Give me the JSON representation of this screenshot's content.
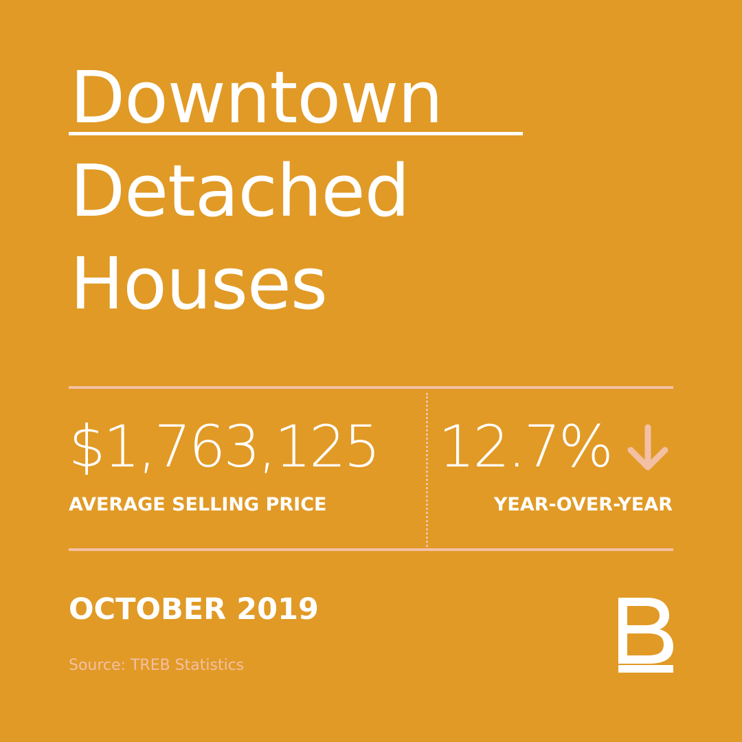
{
  "theme": {
    "background": "#E19A26",
    "text": "#FFFFFF",
    "accent": "#F3C0A4"
  },
  "title": {
    "line1": "Downtown",
    "line2": "Detached",
    "line3": "Houses"
  },
  "stats": {
    "price": {
      "value": "$1,763,125",
      "label": "AVERAGE SELLING PRICE"
    },
    "change": {
      "value": "12.7%",
      "direction_icon": "arrow-down-icon",
      "label": "YEAR-OVER-YEAR"
    }
  },
  "period": "OCTOBER 2019",
  "source": "Source: TREB Statistics",
  "logo": {
    "icon": "brand-b-logo"
  }
}
